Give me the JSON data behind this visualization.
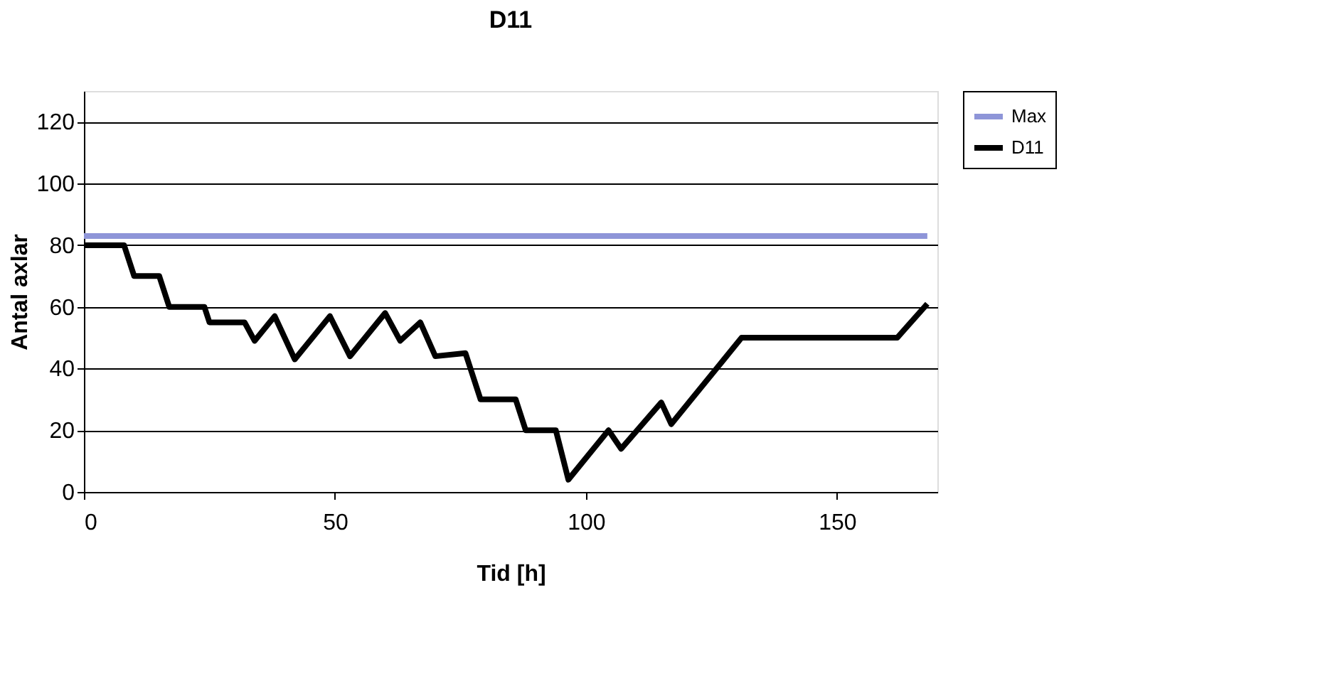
{
  "chart_data": {
    "type": "line",
    "title": "D11",
    "xlabel": "Tid [h]",
    "ylabel": "Antal axlar",
    "series": [
      {
        "name": "Max",
        "color": "#8e95d8",
        "x": [
          0,
          168
        ],
        "values": [
          83,
          83
        ]
      },
      {
        "name": "D11",
        "color": "#000000",
        "x": [
          0,
          8,
          10,
          15,
          17,
          24,
          25,
          32,
          34,
          38,
          42,
          49,
          53,
          60,
          63,
          67,
          70,
          76,
          79,
          86,
          88,
          94,
          96.5,
          104.5,
          107,
          115,
          117,
          121,
          131,
          162,
          168
        ],
        "values": [
          80,
          80,
          70,
          70,
          60,
          60,
          55,
          55,
          49,
          57,
          43,
          57,
          44,
          58,
          49,
          55,
          44,
          45,
          30,
          30,
          20,
          20,
          4,
          20,
          14,
          29,
          22,
          30,
          50,
          50,
          61
        ]
      }
    ],
    "xlim": [
      0,
      170
    ],
    "xticks": [
      0,
      50,
      100,
      150
    ],
    "ylim": [
      0,
      130
    ],
    "yticks": [
      0,
      20,
      40,
      60,
      80,
      100,
      120
    ],
    "grid": "y",
    "legend": "right",
    "marker": "none",
    "line_style": "solid"
  }
}
